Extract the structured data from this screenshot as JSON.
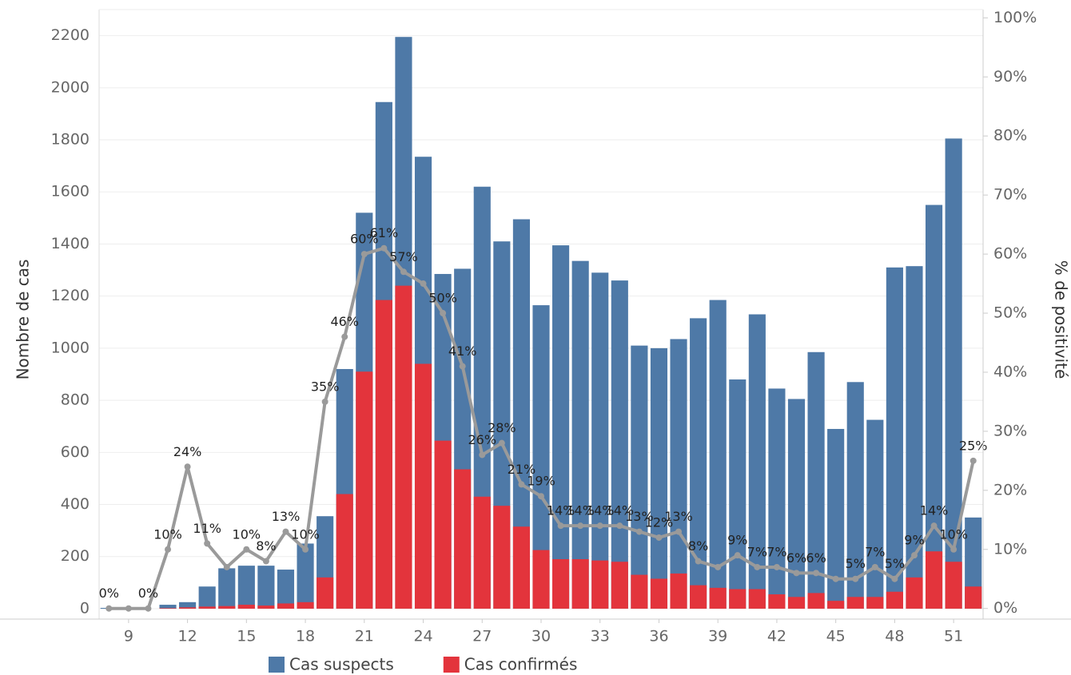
{
  "chart_data": {
    "type": "bar",
    "y_label": "Nombre de cas",
    "y2_label": "% de positivité",
    "x": [
      8,
      9,
      10,
      11,
      12,
      13,
      14,
      15,
      16,
      17,
      18,
      19,
      20,
      21,
      22,
      23,
      24,
      25,
      26,
      27,
      28,
      29,
      30,
      31,
      32,
      33,
      34,
      35,
      36,
      37,
      38,
      39,
      40,
      41,
      42,
      43,
      44,
      45,
      46,
      47,
      48,
      49,
      50,
      51,
      52
    ],
    "xlim": [
      7.5,
      52.5
    ],
    "xticks": [
      9,
      12,
      15,
      18,
      21,
      24,
      27,
      30,
      33,
      36,
      39,
      42,
      45,
      48,
      51
    ],
    "ylim": [
      -40,
      2300
    ],
    "yticks": [
      0,
      200,
      400,
      600,
      800,
      1000,
      1200,
      1400,
      1600,
      1800,
      2000,
      2200
    ],
    "y2lim": [
      -1.8,
      101.4
    ],
    "y2ticks": [
      {
        "value": 0,
        "label": "0%"
      },
      {
        "value": 10,
        "label": "10%"
      },
      {
        "value": 20,
        "label": "20%"
      },
      {
        "value": 30,
        "label": "30%"
      },
      {
        "value": 40,
        "label": "40%"
      },
      {
        "value": 50,
        "label": "50%"
      },
      {
        "value": 60,
        "label": "60%"
      },
      {
        "value": 70,
        "label": "70%"
      },
      {
        "value": 80,
        "label": "80%"
      },
      {
        "value": 90,
        "label": "90%"
      },
      {
        "value": 100,
        "label": "100%"
      }
    ],
    "grid": true,
    "legend": "bottom",
    "series": [
      {
        "name": "Cas suspects",
        "color": "#4e79a7",
        "values": [
          3,
          0,
          0,
          15,
          25,
          85,
          155,
          165,
          165,
          150,
          250,
          355,
          920,
          1520,
          1945,
          2195,
          1735,
          1285,
          1305,
          1620,
          1410,
          1495,
          1165,
          1395,
          1335,
          1290,
          1260,
          1010,
          1000,
          1035,
          1115,
          1185,
          880,
          1130,
          845,
          805,
          985,
          690,
          870,
          725,
          1310,
          1315,
          1550,
          1805,
          350
        ]
      },
      {
        "name": "Cas confirmés",
        "color": "#e3343c",
        "values": [
          0,
          0,
          0,
          2,
          5,
          8,
          10,
          15,
          12,
          20,
          25,
          120,
          440,
          910,
          1185,
          1240,
          940,
          645,
          535,
          430,
          395,
          315,
          225,
          190,
          190,
          185,
          180,
          130,
          115,
          135,
          90,
          80,
          75,
          75,
          55,
          45,
          60,
          30,
          45,
          45,
          65,
          120,
          220,
          180,
          85
        ]
      },
      {
        "type": "line",
        "axis": "y2",
        "color": "#9a9a9a",
        "values": [
          0,
          0,
          0,
          10,
          24,
          11,
          7,
          10,
          8,
          13,
          10,
          35,
          46,
          60,
          61,
          57,
          55,
          50,
          41,
          26,
          28,
          21,
          19,
          14,
          14,
          14,
          14,
          13,
          12,
          13,
          8,
          7,
          9,
          7,
          7,
          6,
          6,
          5,
          5,
          7,
          5,
          9,
          14,
          10,
          25
        ],
        "value_labels": [
          "0%",
          null,
          "0%",
          "10%",
          "24%",
          "11%",
          null,
          "10%",
          "8%",
          "13%",
          "10%",
          "35%",
          "46%",
          "60%",
          "61%",
          "57%",
          null,
          "50%",
          "41%",
          "26%",
          "28%",
          "21%",
          "19%",
          "14%",
          "14%",
          "14%",
          "14%",
          "13%",
          "12%",
          "13%",
          "8%",
          null,
          "9%",
          "7%",
          "7%",
          "6%",
          "6%",
          null,
          "5%",
          "7%",
          "5%",
          "9%",
          "14%",
          "10%",
          "25%"
        ]
      }
    ]
  }
}
